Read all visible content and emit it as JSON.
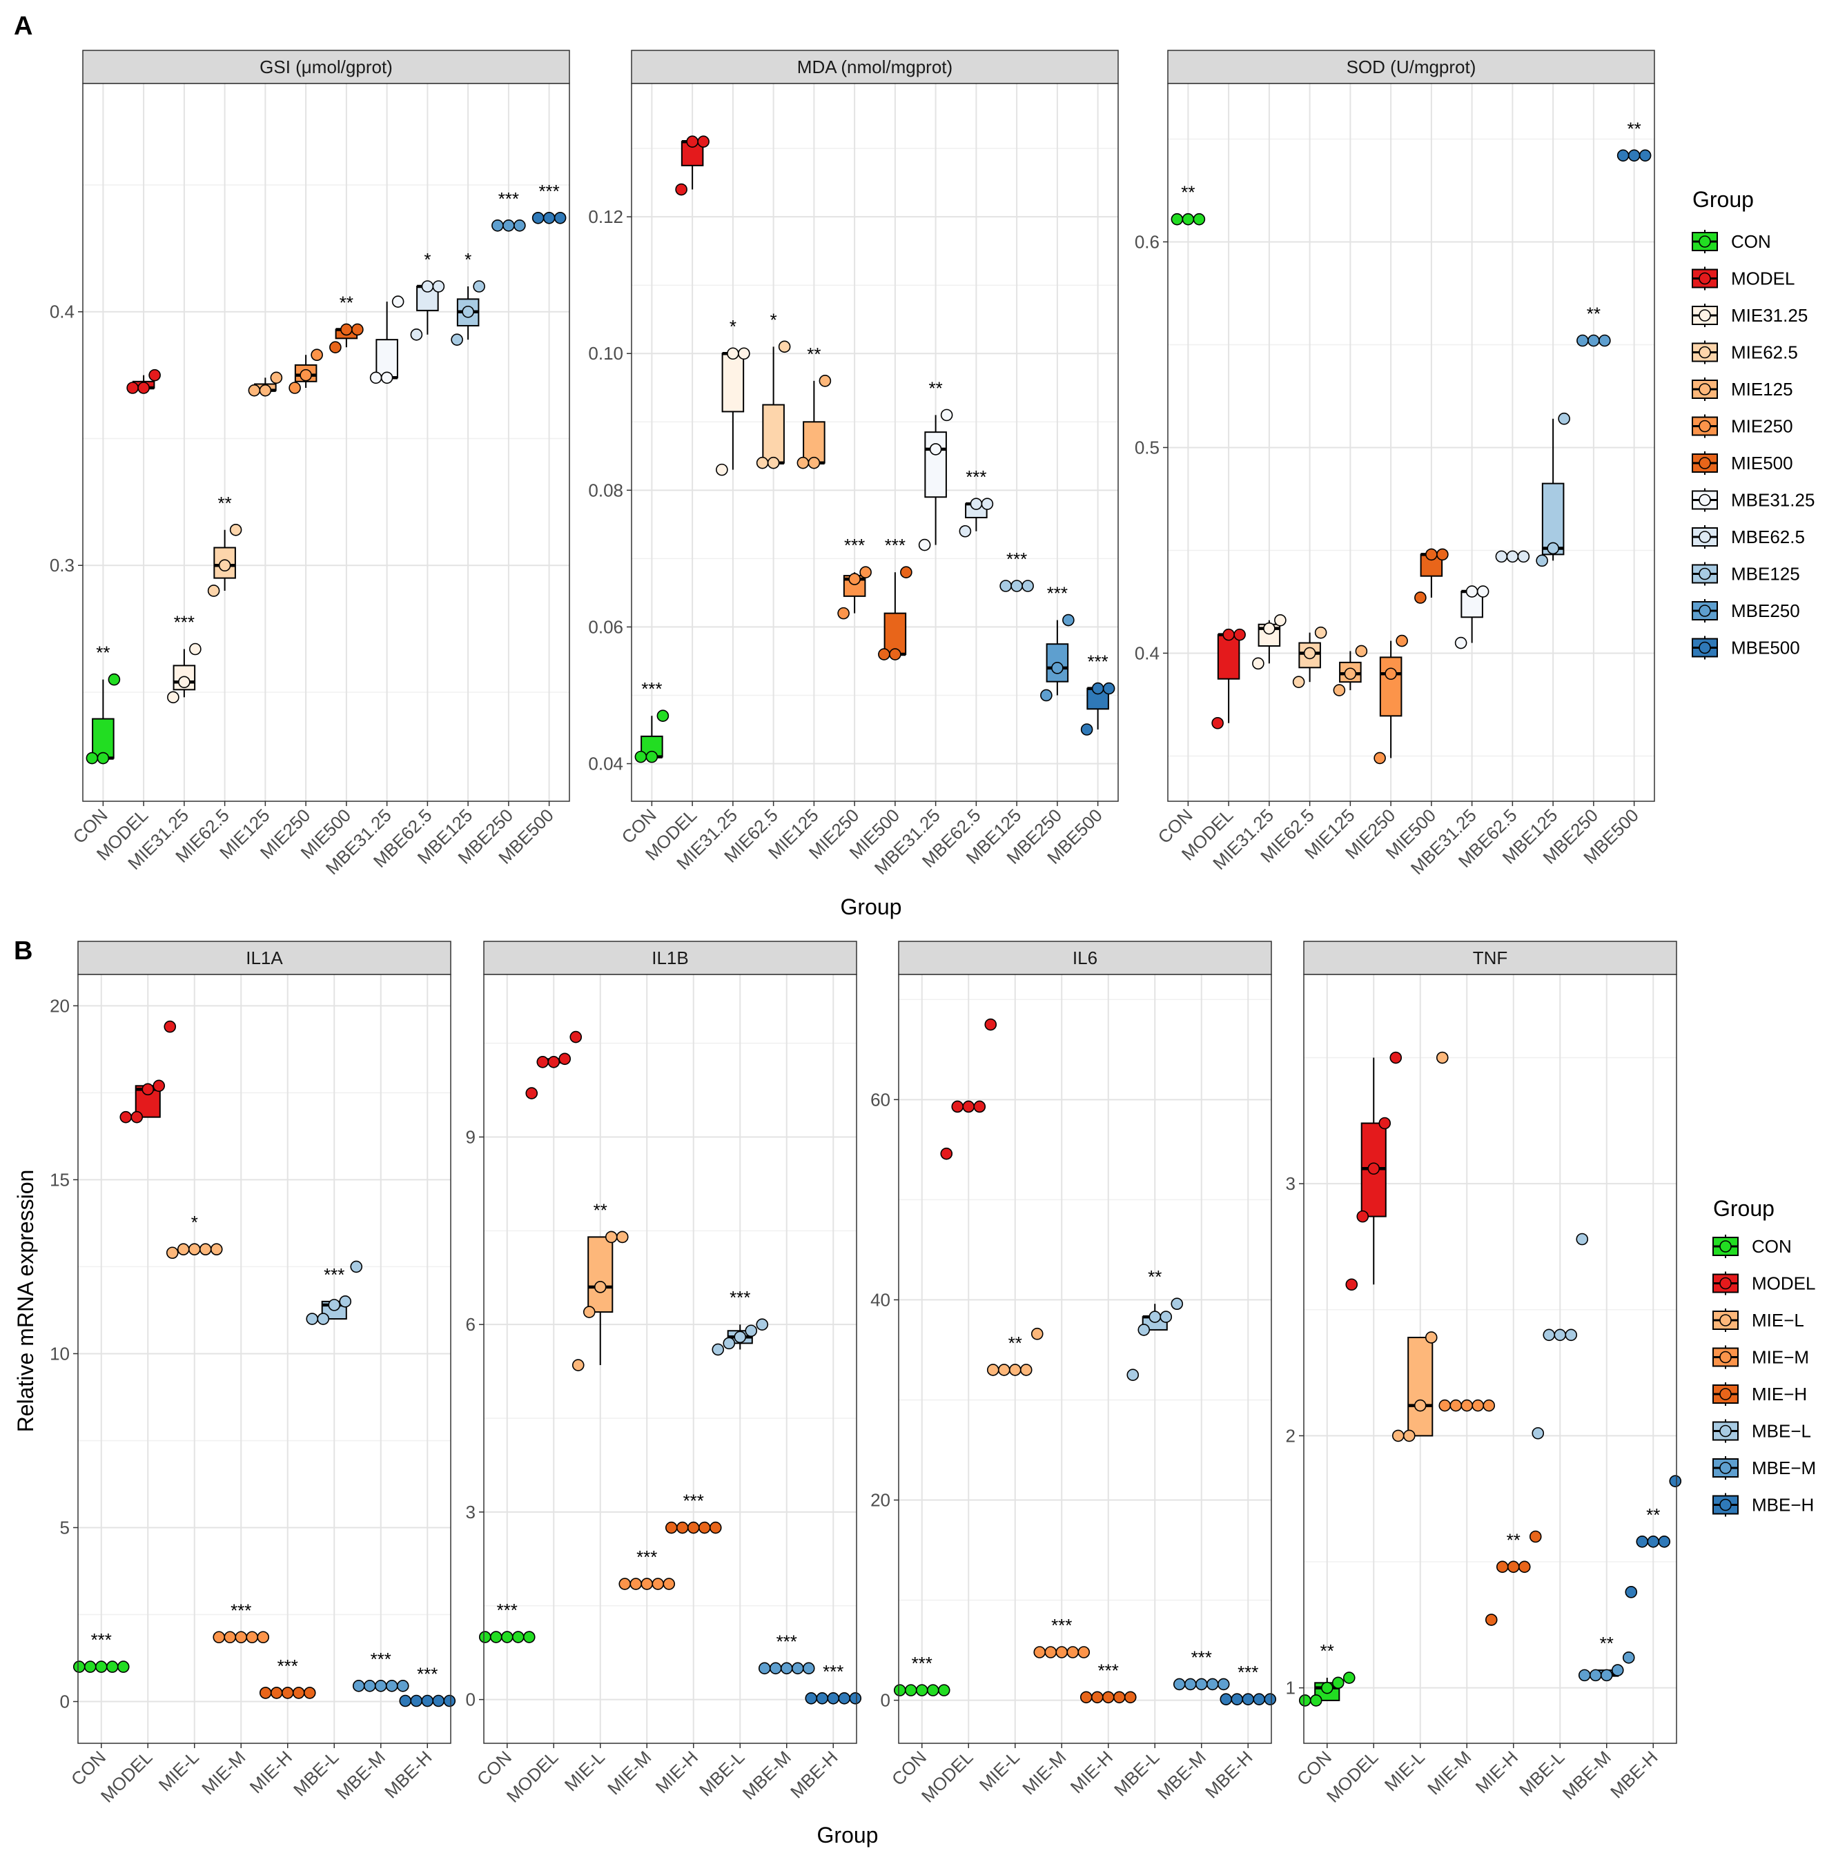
{
  "figure": {
    "panel_a_letter": "A",
    "panel_b_letter": "B",
    "panel_a_xlabel": "Group",
    "panel_b_xlabel": "Group",
    "panel_b_ylabel": "Relative mRNA expression",
    "legend_a_title": "Group",
    "legend_b_title": "Group"
  },
  "colors": {
    "CON": "#22dd22",
    "MODEL": "#e41a1c",
    "MIE31.25": "#fff3e6",
    "MIE62.5": "#fdd5ab",
    "MIE125": "#fdb77a",
    "MIE250": "#fc944a",
    "MIE500": "#e8651a",
    "MBE31.25": "#f5f8fc",
    "MBE62.5": "#dde9f4",
    "MBE125": "#a8cbe3",
    "MBE250": "#5e9fcf",
    "MBE500": "#2f79b8",
    "MIE-L": "#fdb77a",
    "MIE-M": "#fc944a",
    "MIE-H": "#e8651a",
    "MBE-L": "#a8cbe3",
    "MBE-M": "#5e9fcf",
    "MBE-H": "#2f79b8"
  },
  "chart_data": [
    {
      "type": "boxplot",
      "panel": "A",
      "title": "GSI (μmol/gprot)",
      "xlabel": "Group",
      "ylim": [
        0.207,
        0.49
      ],
      "yticks": [
        0.3,
        0.4
      ],
      "ytick_labels": [
        "0.3",
        "0.4"
      ],
      "categories": [
        "CON",
        "MODEL",
        "MIE31.25",
        "MIE62.5",
        "MIE125",
        "MIE250",
        "MIE500",
        "MBE31.25",
        "MBE62.5",
        "MBE125",
        "MBE250",
        "MBE500"
      ],
      "points": [
        [
          0.224,
          0.224,
          0.255
        ],
        [
          0.37,
          0.37,
          0.375
        ],
        [
          0.248,
          0.254,
          0.267
        ],
        [
          0.29,
          0.3,
          0.314
        ],
        [
          0.369,
          0.369,
          0.374
        ],
        [
          0.37,
          0.375,
          0.383
        ],
        [
          0.386,
          0.393,
          0.393
        ],
        [
          0.374,
          0.374,
          0.404
        ],
        [
          0.391,
          0.41,
          0.41
        ],
        [
          0.389,
          0.4,
          0.41
        ],
        [
          0.434,
          0.434,
          0.434
        ],
        [
          0.437,
          0.437,
          0.437
        ]
      ],
      "sig": [
        "**",
        "",
        "***",
        "**",
        "",
        "",
        "**",
        "",
        "*",
        "*",
        "***",
        "***"
      ]
    },
    {
      "type": "boxplot",
      "panel": "A",
      "title": "MDA (nmol/mgprot)",
      "xlabel": "Group",
      "ylim": [
        0.0345,
        0.1395
      ],
      "yticks": [
        0.04,
        0.06,
        0.08,
        0.1,
        0.12
      ],
      "ytick_labels": [
        "0.04",
        "0.06",
        "0.08",
        "0.10",
        "0.12"
      ],
      "categories": [
        "CON",
        "MODEL",
        "MIE31.25",
        "MIE62.5",
        "MIE125",
        "MIE250",
        "MIE500",
        "MBE31.25",
        "MBE62.5",
        "MBE125",
        "MBE250",
        "MBE500"
      ],
      "points": [
        [
          0.041,
          0.041,
          0.047
        ],
        [
          0.124,
          0.131,
          0.131
        ],
        [
          0.083,
          0.1,
          0.1
        ],
        [
          0.084,
          0.084,
          0.101
        ],
        [
          0.084,
          0.084,
          0.096
        ],
        [
          0.062,
          0.067,
          0.068
        ],
        [
          0.056,
          0.056,
          0.068
        ],
        [
          0.072,
          0.086,
          0.091
        ],
        [
          0.074,
          0.078,
          0.078
        ],
        [
          0.066,
          0.066,
          0.066
        ],
        [
          0.05,
          0.054,
          0.061
        ],
        [
          0.045,
          0.051,
          0.051
        ]
      ],
      "sig": [
        "***",
        "",
        "*",
        "*",
        "**",
        "***",
        "***",
        "**",
        "***",
        "***",
        "***",
        "***"
      ]
    },
    {
      "type": "boxplot",
      "panel": "A",
      "title": "SOD (U/mgprot)",
      "xlabel": "Group",
      "ylim": [
        0.328,
        0.677
      ],
      "yticks": [
        0.4,
        0.5,
        0.6
      ],
      "ytick_labels": [
        "0.4",
        "0.5",
        "0.6"
      ],
      "categories": [
        "CON",
        "MODEL",
        "MIE31.25",
        "MIE62.5",
        "MIE125",
        "MIE250",
        "MIE500",
        "MBE31.25",
        "MBE62.5",
        "MBE125",
        "MBE250",
        "MBE500"
      ],
      "points": [
        [
          0.611,
          0.611,
          0.611
        ],
        [
          0.366,
          0.409,
          0.409
        ],
        [
          0.395,
          0.412,
          0.416
        ],
        [
          0.386,
          0.4,
          0.41
        ],
        [
          0.382,
          0.39,
          0.401
        ],
        [
          0.349,
          0.39,
          0.406
        ],
        [
          0.427,
          0.448,
          0.448
        ],
        [
          0.405,
          0.43,
          0.43
        ],
        [
          0.447,
          0.447,
          0.447
        ],
        [
          0.445,
          0.451,
          0.514
        ],
        [
          0.552,
          0.552,
          0.552
        ],
        [
          0.642,
          0.642,
          0.642
        ]
      ],
      "sig": [
        "**",
        "",
        "",
        "",
        "",
        "",
        "",
        "",
        "",
        "",
        "**",
        "**"
      ]
    },
    {
      "type": "boxplot",
      "panel": "B",
      "title": "IL1A",
      "xlabel": "Group",
      "ylabel": "Relative mRNA expression",
      "ylim": [
        -1.2,
        20.9
      ],
      "yticks": [
        0,
        5,
        10,
        15,
        20
      ],
      "ytick_labels": [
        "0",
        "5",
        "10",
        "15",
        "20"
      ],
      "categories": [
        "CON",
        "MODEL",
        "MIE-L",
        "MIE-M",
        "MIE-H",
        "MBE-L",
        "MBE-M",
        "MBE-H"
      ],
      "points": [
        [
          1.0,
          1.0,
          1.0,
          1.0,
          1.0
        ],
        [
          16.8,
          16.8,
          17.6,
          17.7,
          19.4
        ],
        [
          12.9,
          13.0,
          13.0,
          13.0,
          13.0
        ],
        [
          1.85,
          1.85,
          1.85,
          1.85,
          1.85
        ],
        [
          0.25,
          0.25,
          0.25,
          0.25,
          0.25
        ],
        [
          11.0,
          11.0,
          11.4,
          11.5,
          12.5
        ],
        [
          0.45,
          0.45,
          0.45,
          0.45,
          0.45
        ],
        [
          0.02,
          0.02,
          0.02,
          0.02,
          0.02
        ]
      ],
      "sig": [
        "***",
        "",
        "*",
        "***",
        "***",
        "***",
        "***",
        "***"
      ]
    },
    {
      "type": "boxplot",
      "panel": "B",
      "title": "IL1B",
      "xlabel": "Group",
      "ylim": [
        -0.7,
        11.6
      ],
      "yticks": [
        0,
        3,
        6,
        9
      ],
      "ytick_labels": [
        "0",
        "3",
        "6",
        "9"
      ],
      "categories": [
        "CON",
        "MODEL",
        "MIE-L",
        "MIE-M",
        "MIE-H",
        "MBE-L",
        "MBE-M",
        "MBE-H"
      ],
      "points": [
        [
          1.0,
          1.0,
          1.0,
          1.0,
          1.0
        ],
        [
          9.7,
          10.2,
          10.2,
          10.25,
          10.6
        ],
        [
          5.35,
          6.2,
          6.6,
          7.4,
          7.4
        ],
        [
          1.85,
          1.85,
          1.85,
          1.85,
          1.85
        ],
        [
          2.75,
          2.75,
          2.75,
          2.75,
          2.75
        ],
        [
          5.6,
          5.7,
          5.8,
          5.9,
          6.0
        ],
        [
          0.5,
          0.5,
          0.5,
          0.5,
          0.5
        ],
        [
          0.02,
          0.02,
          0.02,
          0.02,
          0.02
        ]
      ],
      "sig": [
        "***",
        "",
        "**",
        "***",
        "***",
        "***",
        "***",
        "***"
      ]
    },
    {
      "type": "boxplot",
      "panel": "B",
      "title": "IL6",
      "xlabel": "Group",
      "ylim": [
        -4.3,
        72.5
      ],
      "yticks": [
        0,
        20,
        40,
        60
      ],
      "ytick_labels": [
        "0",
        "20",
        "40",
        "60"
      ],
      "categories": [
        "CON",
        "MODEL",
        "MIE-L",
        "MIE-M",
        "MIE-H",
        "MBE-L",
        "MBE-M",
        "MBE-H"
      ],
      "points": [
        [
          1.0,
          1.0,
          1.0,
          1.0,
          1.0
        ],
        [
          54.6,
          59.3,
          59.3,
          59.3,
          67.5
        ],
        [
          33.0,
          33.0,
          33.0,
          33.0,
          36.6
        ],
        [
          4.8,
          4.8,
          4.8,
          4.8,
          4.8
        ],
        [
          0.3,
          0.3,
          0.3,
          0.3,
          0.3
        ],
        [
          32.5,
          37.0,
          38.3,
          38.3,
          39.6
        ],
        [
          1.6,
          1.6,
          1.6,
          1.6,
          1.6
        ],
        [
          0.1,
          0.1,
          0.1,
          0.1,
          0.1
        ]
      ],
      "sig": [
        "***",
        "",
        "**",
        "***",
        "***",
        "**",
        "***",
        "***"
      ]
    },
    {
      "type": "boxplot",
      "panel": "B",
      "title": "TNF",
      "xlabel": "Group",
      "ylim": [
        0.78,
        3.83
      ],
      "yticks": [
        1,
        2,
        3
      ],
      "ytick_labels": [
        "1",
        "2",
        "3"
      ],
      "categories": [
        "CON",
        "MODEL",
        "MIE-L",
        "MIE-M",
        "MIE-H",
        "MBE-L",
        "MBE-M",
        "MBE-H"
      ],
      "points": [
        [
          0.95,
          0.95,
          1.0,
          1.02,
          1.04
        ],
        [
          2.6,
          2.87,
          3.06,
          3.24,
          3.5
        ],
        [
          2.0,
          2.0,
          2.12,
          2.39,
          3.5
        ],
        [
          2.12,
          2.12,
          2.12,
          2.12,
          2.12
        ],
        [
          1.27,
          1.48,
          1.48,
          1.48,
          1.6
        ],
        [
          2.01,
          2.4,
          2.4,
          2.4,
          2.78
        ],
        [
          1.05,
          1.05,
          1.05,
          1.07,
          1.12
        ],
        [
          1.38,
          1.58,
          1.58,
          1.58,
          1.82
        ]
      ],
      "sig": [
        "**",
        "",
        "",
        "",
        "**",
        "",
        "**",
        "**"
      ]
    }
  ],
  "legend_a": {
    "title": "Group",
    "items": [
      "CON",
      "MODEL",
      "MIE31.25",
      "MIE62.5",
      "MIE125",
      "MIE250",
      "MIE500",
      "MBE31.25",
      "MBE62.5",
      "MBE125",
      "MBE250",
      "MBE500"
    ]
  },
  "legend_b": {
    "title": "Group",
    "items": [
      "CON",
      "MODEL",
      "MIE−L",
      "MIE−M",
      "MIE−H",
      "MBE−L",
      "MBE−M",
      "MBE−H"
    ]
  }
}
